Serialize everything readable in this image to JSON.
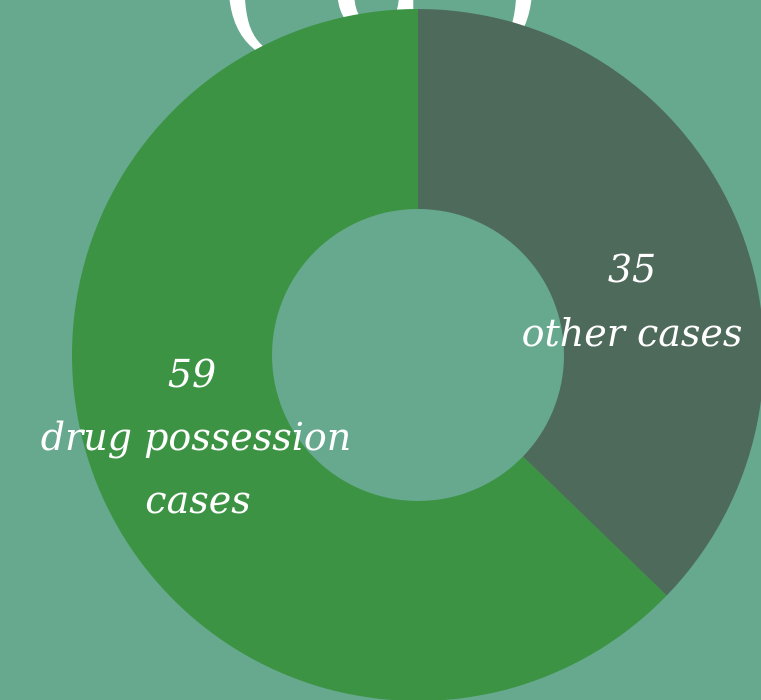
{
  "chart_data": {
    "type": "pie",
    "donut": true,
    "title_fragment": "( g )",
    "slices": [
      {
        "value_label": "35",
        "text": "other cases",
        "value": 35,
        "color": "#4e6a5b"
      },
      {
        "value_label": "59",
        "text_lines": [
          "drug possession",
          "cases"
        ],
        "value": 59,
        "color": "#3c9343"
      }
    ],
    "background_color": "#66a98e",
    "hole_color": "#66a98e"
  }
}
